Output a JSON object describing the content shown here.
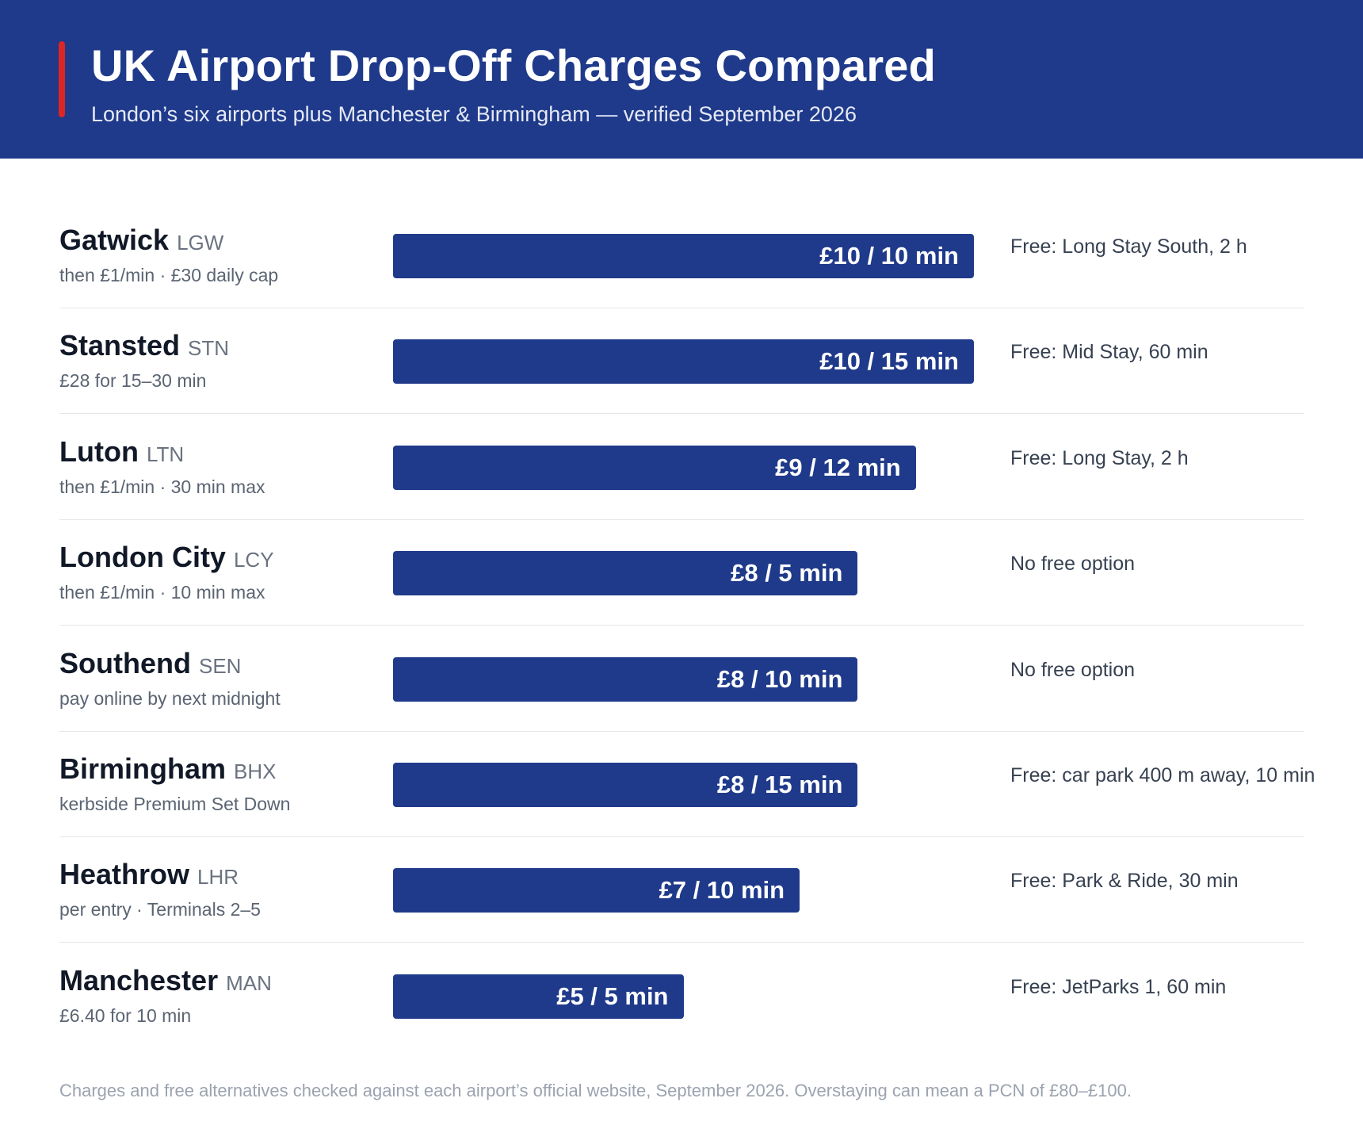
{
  "header": {
    "title": "UK Airport Drop-Off Charges Compared",
    "subtitle": "London’s six airports plus Manchester & Birmingham — verified September 2026",
    "background_color": "#1f3a8a",
    "accent_color": "#dc2626"
  },
  "chart_data": {
    "type": "bar",
    "orientation": "horizontal",
    "title": "UK Airport Drop-Off Charges Compared",
    "subtitle": "London’s six airports plus Manchester & Birmingham — verified September 2026",
    "bar_color": "#1f3a8a",
    "grid": false,
    "rows": [
      {
        "airport": "Gatwick",
        "code": "LGW",
        "note": "then £1/min · £30 daily cap",
        "charge_gbp": 10,
        "bar_label": "£10 / 10 min",
        "free_option": "Free: Long Stay South, 2 h"
      },
      {
        "airport": "Stansted",
        "code": "STN",
        "note": "£28 for 15–30 min",
        "charge_gbp": 10,
        "bar_label": "£10 / 15 min",
        "free_option": "Free: Mid Stay, 60 min"
      },
      {
        "airport": "Luton",
        "code": "LTN",
        "note": "then £1/min · 30 min max",
        "charge_gbp": 9,
        "bar_label": "£9 / 12 min",
        "free_option": "Free: Long Stay, 2 h"
      },
      {
        "airport": "London City",
        "code": "LCY",
        "note": "then £1/min · 10 min max",
        "charge_gbp": 8,
        "bar_label": "£8 / 5 min",
        "free_option": "No free option"
      },
      {
        "airport": "Southend",
        "code": "SEN",
        "note": "pay online by next midnight",
        "charge_gbp": 8,
        "bar_label": "£8 / 10 min",
        "free_option": "No free option"
      },
      {
        "airport": "Birmingham",
        "code": "BHX",
        "note": "kerbside Premium Set Down",
        "charge_gbp": 8,
        "bar_label": "£8 / 15 min",
        "free_option": "Free: car park 400 m away, 10 min"
      },
      {
        "airport": "Heathrow",
        "code": "LHR",
        "note": "per entry · Terminals 2–5",
        "charge_gbp": 7,
        "bar_label": "£7 / 10 min",
        "free_option": "Free: Park & Ride, 30 min"
      },
      {
        "airport": "Manchester",
        "code": "MAN",
        "note": "£6.40 for 10 min",
        "charge_gbp": 5,
        "bar_label": "£5 / 5 min",
        "free_option": "Free: JetParks 1, 60 min"
      }
    ]
  },
  "footnote": "Charges and free alternatives checked against each airport’s official website, September 2026. Overstaying can mean a PCN of £80–£100."
}
